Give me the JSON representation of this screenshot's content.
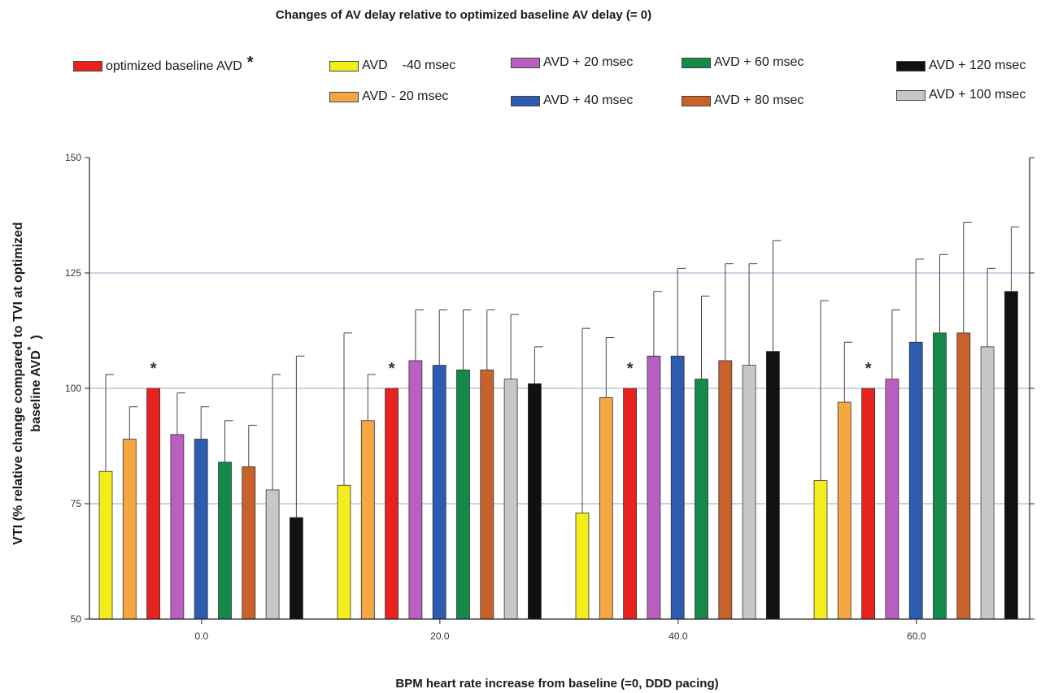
{
  "chart_data": {
    "type": "bar",
    "title": "Changes of AV delay relative to optimized baseline AV delay (= 0)",
    "xlabel": "BPM heart rate increase from baseline (=0, DDD pacing)",
    "ylabel_line1": "VTI (% relative change compared to TVI at optimized",
    "ylabel_line2": "baseline AVD",
    "ylabel_sup": "*",
    "ylabel_end": ")",
    "ylim": [
      50,
      150
    ],
    "yticks": [
      "50",
      "75",
      "100",
      "125",
      "150"
    ],
    "grid": true,
    "legend_position": "top",
    "categories": [
      "0.0",
      "20.0",
      "40.0",
      "60.0"
    ],
    "significance_marker": "*",
    "series": [
      {
        "name": "AVD    -40 msec",
        "color": "#f2ee1c",
        "values": [
          82,
          79,
          73,
          80
        ],
        "errors": [
          103,
          112,
          113,
          119
        ]
      },
      {
        "name": "AVD - 20 msec",
        "color": "#f5a742",
        "values": [
          89,
          93,
          98,
          97
        ],
        "errors": [
          96,
          103,
          111,
          110
        ]
      },
      {
        "name": "optimized baseline AVD",
        "legend_star": "*",
        "color": "#e8231f",
        "values": [
          100,
          100,
          100,
          100
        ],
        "errors": [
          null,
          null,
          null,
          null
        ],
        "marked": true
      },
      {
        "name": "AVD + 20 msec",
        "color": "#b95fbf",
        "values": [
          90,
          106,
          107,
          102
        ],
        "errors": [
          99,
          117,
          121,
          117
        ]
      },
      {
        "name": "AVD + 40 msec",
        "color": "#2c5bb0",
        "values": [
          89,
          105,
          107,
          110
        ],
        "errors": [
          96,
          117,
          126,
          128
        ]
      },
      {
        "name": "AVD + 60 msec",
        "color": "#15894a",
        "values": [
          84,
          104,
          102,
          112
        ],
        "errors": [
          93,
          117,
          120,
          129
        ]
      },
      {
        "name": "AVD + 80 msec",
        "color": "#c8622a",
        "values": [
          83,
          104,
          106,
          112
        ],
        "errors": [
          92,
          117,
          127,
          136
        ]
      },
      {
        "name": "AVD + 100 msec",
        "color": "#c7c7c7",
        "values": [
          78,
          102,
          105,
          109
        ],
        "errors": [
          103,
          116,
          127,
          126
        ]
      },
      {
        "name": "AVD + 120 msec",
        "color": "#111111",
        "values": [
          72,
          101,
          108,
          121
        ],
        "errors": [
          107,
          109,
          132,
          135
        ]
      }
    ],
    "legend_order": [
      2,
      0,
      3,
      5,
      8,
      1,
      4,
      6,
      7
    ]
  }
}
